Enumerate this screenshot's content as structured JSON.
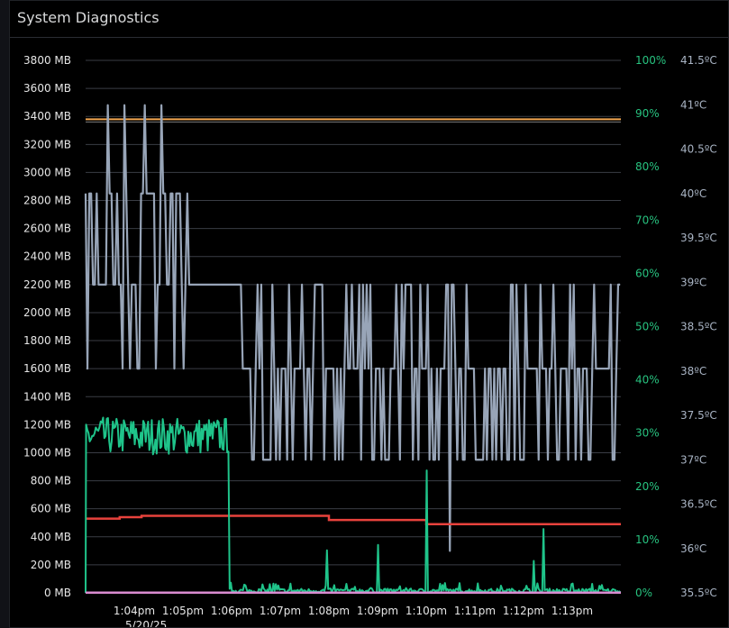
{
  "panel": {
    "title": "System Diagnostics"
  },
  "colors": {
    "memory": "#98a5b8",
    "cpu": "#1fc48a",
    "temperature": "#e8423c",
    "swap": "#d98bd0",
    "reference": "#f2a650",
    "grid": "#3a3d45"
  },
  "chart_data": {
    "type": "line",
    "x_tick_labels": [
      "1:04pm",
      "1:05pm",
      "1:06pm",
      "1:07pm",
      "1:08pm",
      "1:09pm",
      "1:10pm",
      "1:11pm",
      "1:12pm",
      "1:13pm"
    ],
    "x_date_label": "5/20/25",
    "x_range": [
      "1:03pm",
      "1:14pm"
    ],
    "y_left": {
      "unit": "MB",
      "range": [
        0,
        3800
      ],
      "ticks": [
        "0 MB",
        "200 MB",
        "400 MB",
        "600 MB",
        "800 MB",
        "1000 MB",
        "1200 MB",
        "1400 MB",
        "1600 MB",
        "1800 MB",
        "2000 MB",
        "2200 MB",
        "2400 MB",
        "2600 MB",
        "2800 MB",
        "3000 MB",
        "3200 MB",
        "3400 MB",
        "3600 MB",
        "3800 MB"
      ]
    },
    "y_right_percent": {
      "range": [
        0,
        100
      ],
      "ticks": [
        "0%",
        "10%",
        "20%",
        "30%",
        "40%",
        "50%",
        "60%",
        "70%",
        "80%",
        "90%",
        "100%"
      ]
    },
    "y_right_temperature": {
      "range": [
        35.5,
        41.5
      ],
      "ticks": [
        "35.5ºC",
        "36ºC",
        "36.5ºC",
        "37ºC",
        "37.5ºC",
        "38ºC",
        "38.5ºC",
        "39ºC",
        "39.5ºC",
        "40ºC",
        "40.5ºC",
        "41ºC",
        "41.5ºC"
      ]
    },
    "grid": true,
    "reference_line": {
      "value_mb": 3380
    },
    "series": [
      {
        "key": "memory",
        "axis": "mb",
        "levels_mb": [
          1600,
          2200,
          2850,
          3480
        ],
        "segments": [
          {
            "from_min": 0,
            "to_min": 2.1,
            "levels": [
              2200,
              2850,
              3480,
              1600
            ],
            "pattern": "noisy"
          },
          {
            "from_min": 2.1,
            "to_min": 3.2,
            "levels": [
              2200
            ],
            "pattern": "flat"
          },
          {
            "from_min": 3.2,
            "to_min": 11,
            "levels": [
              950,
              1600,
              2200
            ],
            "pattern": "noisy"
          }
        ],
        "dip_mb": 300,
        "dip_at_min": 7.5
      },
      {
        "key": "cpu",
        "axis": "percent",
        "phase1_range_percent": [
          26,
          33
        ],
        "phase2_range_percent": [
          0,
          6
        ],
        "switch_at_min": 2.95,
        "spikes": [
          {
            "at_min": 7.0,
            "value_percent": 23
          },
          {
            "at_min": 9.2,
            "value_percent": 6
          },
          {
            "at_min": 9.4,
            "value_percent": 12
          },
          {
            "at_min": 6.0,
            "value_percent": 9
          },
          {
            "at_min": 4.95,
            "value_percent": 8
          }
        ]
      },
      {
        "key": "temperature",
        "axis": "mb",
        "steps": [
          {
            "from_min": 0,
            "to_min": 0.7,
            "value_mb": 530
          },
          {
            "from_min": 0.7,
            "to_min": 1.15,
            "value_mb": 540
          },
          {
            "from_min": 1.15,
            "to_min": 5.0,
            "value_mb": 550
          },
          {
            "from_min": 5.0,
            "to_min": 7.0,
            "value_mb": 520
          },
          {
            "from_min": 7.0,
            "to_min": 11,
            "value_mb": 490
          }
        ]
      },
      {
        "key": "swap",
        "axis": "mb",
        "value_mb": 2
      }
    ]
  }
}
